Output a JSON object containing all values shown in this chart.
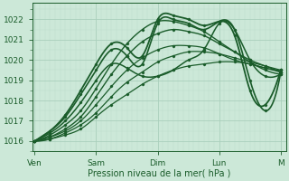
{
  "background_color": "#cce8d8",
  "grid_color_major": "#aacfbc",
  "grid_color_minor": "#bbdcca",
  "line_color": "#1a5c2a",
  "xlabel": "Pression niveau de la mer( hPa )",
  "xtick_labels": [
    "Ven",
    "Sam",
    "Dim",
    "Lun",
    "M"
  ],
  "xtick_positions": [
    0,
    24,
    48,
    72,
    96
  ],
  "ylim": [
    1015.5,
    1022.8
  ],
  "xlim": [
    -1,
    98
  ],
  "yticks": [
    1016,
    1017,
    1018,
    1019,
    1020,
    1021,
    1022
  ],
  "lines": [
    {
      "points": [
        [
          0,
          1016.0
        ],
        [
          6,
          1016.1
        ],
        [
          12,
          1016.3
        ],
        [
          18,
          1016.6
        ],
        [
          24,
          1017.2
        ],
        [
          30,
          1017.8
        ],
        [
          36,
          1018.3
        ],
        [
          42,
          1018.8
        ],
        [
          48,
          1019.2
        ],
        [
          54,
          1019.5
        ],
        [
          60,
          1019.7
        ],
        [
          66,
          1019.8
        ],
        [
          72,
          1019.9
        ],
        [
          78,
          1019.9
        ],
        [
          84,
          1019.8
        ],
        [
          90,
          1019.6
        ],
        [
          96,
          1019.5
        ]
      ],
      "lw": 0.9
    },
    {
      "points": [
        [
          0,
          1016.0
        ],
        [
          6,
          1016.1
        ],
        [
          12,
          1016.4
        ],
        [
          18,
          1016.8
        ],
        [
          24,
          1017.4
        ],
        [
          30,
          1018.2
        ],
        [
          36,
          1018.9
        ],
        [
          42,
          1019.4
        ],
        [
          48,
          1019.9
        ],
        [
          54,
          1020.2
        ],
        [
          60,
          1020.4
        ],
        [
          66,
          1020.4
        ],
        [
          72,
          1020.3
        ],
        [
          78,
          1020.1
        ],
        [
          84,
          1019.9
        ],
        [
          90,
          1019.7
        ],
        [
          96,
          1019.5
        ]
      ],
      "lw": 0.9
    },
    {
      "points": [
        [
          0,
          1016.0
        ],
        [
          6,
          1016.2
        ],
        [
          12,
          1016.5
        ],
        [
          18,
          1017.0
        ],
        [
          24,
          1017.8
        ],
        [
          30,
          1018.7
        ],
        [
          36,
          1019.5
        ],
        [
          42,
          1020.1
        ],
        [
          48,
          1020.5
        ],
        [
          54,
          1020.7
        ],
        [
          60,
          1020.7
        ],
        [
          66,
          1020.6
        ],
        [
          72,
          1020.3
        ],
        [
          78,
          1020.0
        ],
        [
          84,
          1019.8
        ],
        [
          90,
          1019.6
        ],
        [
          96,
          1019.4
        ]
      ],
      "lw": 0.9
    },
    {
      "points": [
        [
          0,
          1016.0
        ],
        [
          6,
          1016.2
        ],
        [
          12,
          1016.6
        ],
        [
          18,
          1017.2
        ],
        [
          24,
          1018.2
        ],
        [
          30,
          1019.3
        ],
        [
          36,
          1020.2
        ],
        [
          42,
          1020.9
        ],
        [
          48,
          1021.3
        ],
        [
          54,
          1021.5
        ],
        [
          60,
          1021.4
        ],
        [
          66,
          1021.2
        ],
        [
          72,
          1020.8
        ],
        [
          78,
          1020.4
        ],
        [
          84,
          1020.0
        ],
        [
          90,
          1019.7
        ],
        [
          96,
          1019.4
        ]
      ],
      "lw": 1.0
    },
    {
      "points": [
        [
          0,
          1016.0
        ],
        [
          6,
          1016.3
        ],
        [
          12,
          1016.8
        ],
        [
          18,
          1017.5
        ],
        [
          24,
          1018.6
        ],
        [
          30,
          1019.8
        ],
        [
          36,
          1020.8
        ],
        [
          42,
          1021.5
        ],
        [
          48,
          1021.9
        ],
        [
          54,
          1021.9
        ],
        [
          60,
          1021.7
        ],
        [
          66,
          1021.4
        ],
        [
          72,
          1020.9
        ],
        [
          78,
          1020.4
        ],
        [
          84,
          1019.9
        ],
        [
          90,
          1019.5
        ],
        [
          96,
          1019.3
        ]
      ],
      "lw": 1.0
    },
    {
      "points": [
        [
          0,
          1016.0
        ],
        [
          6,
          1016.4
        ],
        [
          12,
          1017.0
        ],
        [
          18,
          1017.9
        ],
        [
          24,
          1019.0
        ],
        [
          30,
          1019.8
        ],
        [
          36,
          1019.6
        ],
        [
          42,
          1019.2
        ],
        [
          48,
          1019.2
        ],
        [
          54,
          1019.5
        ],
        [
          60,
          1020.0
        ],
        [
          66,
          1020.5
        ],
        [
          72,
          1021.8
        ],
        [
          78,
          1021.5
        ],
        [
          84,
          1020.0
        ],
        [
          90,
          1019.2
        ],
        [
          96,
          1019.3
        ]
      ],
      "lw": 1.1
    },
    {
      "points": [
        [
          0,
          1016.0
        ],
        [
          6,
          1016.5
        ],
        [
          12,
          1017.2
        ],
        [
          18,
          1018.3
        ],
        [
          24,
          1019.5
        ],
        [
          30,
          1020.5
        ],
        [
          36,
          1020.2
        ],
        [
          42,
          1019.8
        ],
        [
          48,
          1021.8
        ],
        [
          54,
          1022.0
        ],
        [
          60,
          1021.8
        ],
        [
          66,
          1021.5
        ],
        [
          72,
          1021.9
        ],
        [
          78,
          1021.5
        ],
        [
          84,
          1019.0
        ],
        [
          90,
          1017.5
        ],
        [
          96,
          1019.4
        ]
      ],
      "lw": 1.2
    },
    {
      "points": [
        [
          0,
          1016.0
        ],
        [
          6,
          1016.5
        ],
        [
          12,
          1017.3
        ],
        [
          18,
          1018.5
        ],
        [
          24,
          1019.8
        ],
        [
          30,
          1020.8
        ],
        [
          36,
          1020.6
        ],
        [
          42,
          1020.2
        ],
        [
          48,
          1022.0
        ],
        [
          54,
          1022.2
        ],
        [
          60,
          1022.0
        ],
        [
          66,
          1021.7
        ],
        [
          72,
          1021.9
        ],
        [
          78,
          1021.2
        ],
        [
          84,
          1018.5
        ],
        [
          90,
          1017.8
        ],
        [
          96,
          1019.5
        ]
      ],
      "lw": 1.3
    }
  ]
}
